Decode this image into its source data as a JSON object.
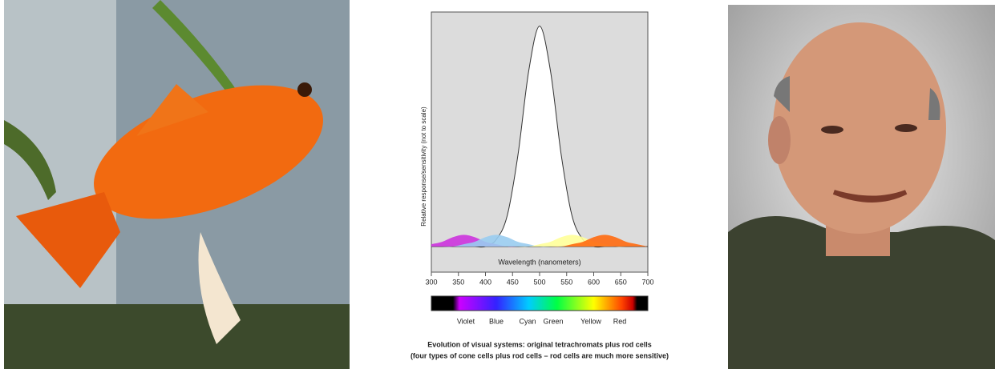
{
  "chart_data": {
    "type": "area",
    "y_label": "Relative response/sensitivity (not to scale)",
    "x_label": "Wavelength (nanometers)",
    "x": [
      300,
      320,
      340,
      360,
      380,
      400,
      420,
      440,
      460,
      480,
      500,
      520,
      540,
      560,
      580,
      600,
      620,
      640,
      660,
      680,
      700
    ],
    "series": [
      {
        "color": "#ffffff",
        "values": [
          0,
          0,
          0,
          0,
          0,
          0,
          3,
          13,
          39,
          75,
          94,
          75,
          39,
          13,
          3,
          0,
          0,
          0,
          0,
          0,
          0
        ]
      },
      {
        "color": "#cc33dd",
        "values": [
          1,
          2,
          4,
          5,
          4,
          2,
          1,
          0,
          0,
          0,
          0,
          0,
          0,
          0,
          0,
          0,
          0,
          0,
          0,
          0,
          0
        ]
      },
      {
        "color": "#99ccf0",
        "values": [
          0,
          0,
          0,
          1,
          2,
          4,
          5,
          4,
          2,
          1,
          0,
          0,
          0,
          0,
          0,
          0,
          0,
          0,
          0,
          0,
          0
        ]
      },
      {
        "color": "#ffff99",
        "values": [
          0,
          0,
          0,
          0,
          0,
          0,
          0,
          0,
          0,
          0,
          1,
          2,
          4,
          5,
          4,
          2,
          1,
          0,
          0,
          0,
          0
        ]
      },
      {
        "color": "#ff6a10",
        "values": [
          0,
          0,
          0,
          0,
          0,
          0,
          0,
          0,
          0,
          0,
          0,
          0,
          0,
          1,
          2,
          4,
          5,
          4,
          2,
          1,
          0
        ]
      }
    ],
    "xlim": [
      300,
      700
    ],
    "xticks": [
      300,
      350,
      400,
      450,
      500,
      550,
      600,
      650,
      700
    ],
    "ylim": [
      0,
      100
    ],
    "spectrum_labels": [
      "Violet",
      "Blue",
      "Cyan",
      "Green",
      "Yellow",
      "Red"
    ],
    "caption": [
      "Evolution of visual systems: original tetrachromats plus rod cells",
      "(four types of cone cells plus rod cells – rod cells are much more sensitive)"
    ]
  }
}
